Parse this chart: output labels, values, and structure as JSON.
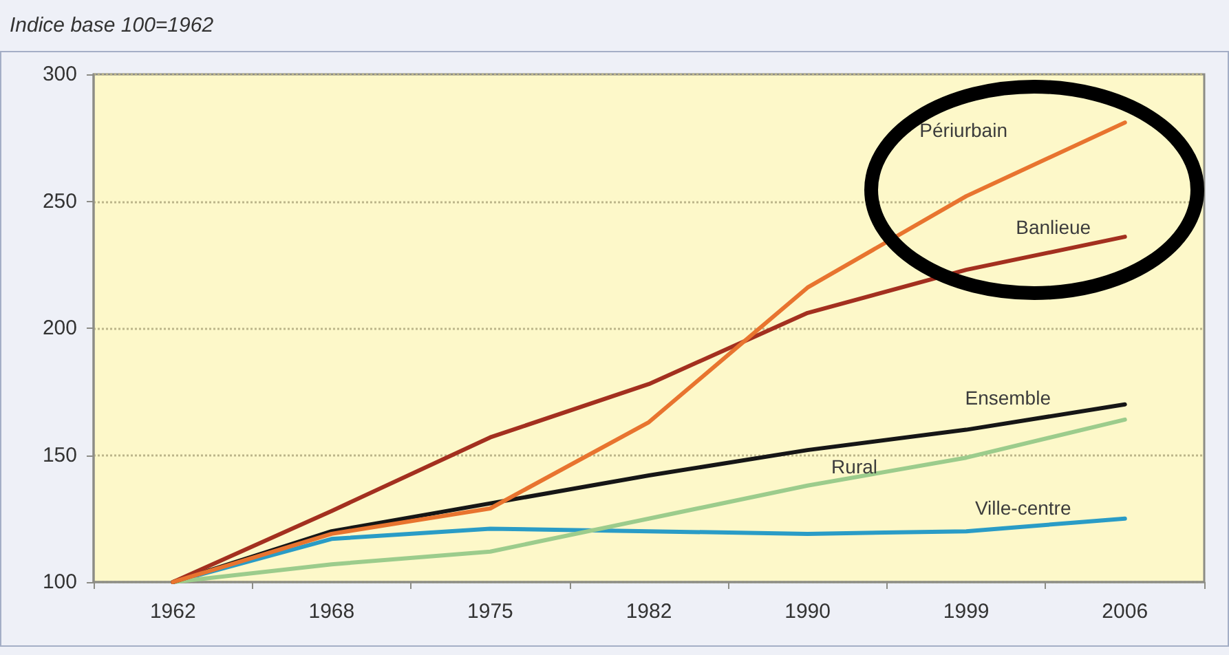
{
  "chart_data": {
    "type": "line",
    "subtitle": "Indice base 100=1962",
    "categories": [
      "1962",
      "1968",
      "1975",
      "1982",
      "1990",
      "1999",
      "2006"
    ],
    "series": [
      {
        "name": "Périurbain",
        "color": "#e8742f",
        "values": [
          100,
          119,
          129,
          163,
          216,
          252,
          281
        ]
      },
      {
        "name": "Banlieue",
        "color": "#a3301f",
        "values": [
          100,
          128,
          157,
          178,
          206,
          223,
          236
        ]
      },
      {
        "name": "Ensemble",
        "color": "#161616",
        "values": [
          100,
          120,
          131,
          142,
          152,
          160,
          170
        ]
      },
      {
        "name": "Rural",
        "color": "#9ccc8c",
        "values": [
          100,
          107,
          112,
          125,
          138,
          149,
          164
        ]
      },
      {
        "name": "Ville-centre",
        "color": "#2a9cc6",
        "values": [
          100,
          117,
          121,
          120,
          119,
          120,
          125
        ]
      }
    ],
    "ylim": [
      100,
      300
    ],
    "yticks": [
      100,
      150,
      200,
      250,
      300
    ],
    "grid": "y"
  }
}
